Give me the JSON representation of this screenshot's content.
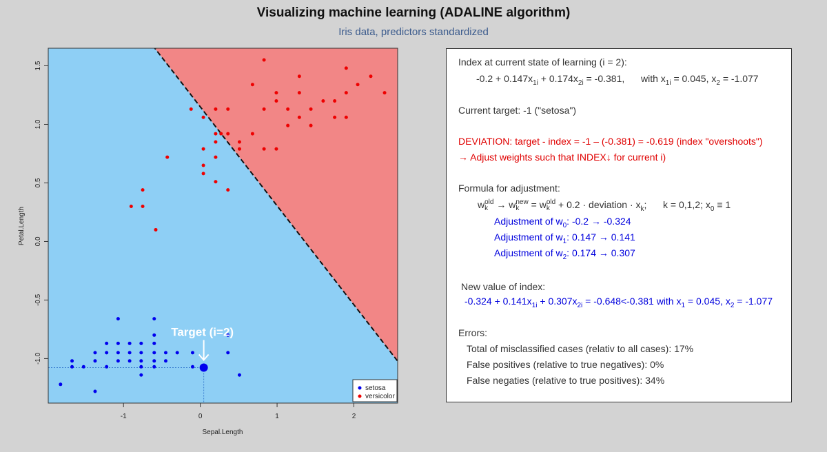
{
  "title": "Visualizing machine learning (ADALINE algorithm)",
  "subtitle": "Iris data, predictors standardized",
  "colors": {
    "setosa": "#0000ee",
    "versicolor": "#ee0000",
    "region_setosa": "#8ecff5",
    "region_versicolor": "#f28686",
    "subtitle": "#3a5a8c"
  },
  "chart_data": {
    "type": "scatter",
    "xlabel": "Sepal.Length",
    "ylabel": "Petal.Length",
    "xlim": [
      -1.98,
      2.57
    ],
    "ylim": [
      -1.38,
      1.65
    ],
    "xticks": [
      -1,
      0,
      1,
      2
    ],
    "yticks": [
      -1.0,
      -0.5,
      0.0,
      0.5,
      1.0,
      1.5
    ],
    "xtick_labels": [
      "-1",
      "0",
      "1",
      "2"
    ],
    "ytick_labels": [
      "-1.0",
      "-0.5",
      "0.0",
      "0.5",
      "1.0",
      "1.5"
    ],
    "legend_position": "bottom-right",
    "decision_boundary": {
      "w0": -0.2,
      "w1": 0.147,
      "w2": 0.174,
      "style": "dashed"
    },
    "series": [
      {
        "name": "setosa",
        "points": [
          [
            -1.82,
            -1.22
          ],
          [
            -1.67,
            -1.07
          ],
          [
            -1.67,
            -1.02
          ],
          [
            -1.52,
            -1.07
          ],
          [
            -1.37,
            -1.28
          ],
          [
            -1.37,
            -1.02
          ],
          [
            -1.37,
            -0.95
          ],
          [
            -1.22,
            -1.07
          ],
          [
            -1.22,
            -0.95
          ],
          [
            -1.22,
            -0.87
          ],
          [
            -1.07,
            -1.02
          ],
          [
            -1.07,
            -0.95
          ],
          [
            -1.07,
            -0.87
          ],
          [
            -1.07,
            -0.66
          ],
          [
            -0.92,
            -1.02
          ],
          [
            -0.92,
            -0.95
          ],
          [
            -0.92,
            -0.87
          ],
          [
            -0.77,
            -1.14
          ],
          [
            -0.77,
            -1.07
          ],
          [
            -0.77,
            -1.02
          ],
          [
            -0.77,
            -0.95
          ],
          [
            -0.77,
            -0.87
          ],
          [
            -0.6,
            -1.07
          ],
          [
            -0.6,
            -1.02
          ],
          [
            -0.6,
            -0.95
          ],
          [
            -0.6,
            -0.87
          ],
          [
            -0.6,
            -0.8
          ],
          [
            -0.6,
            -0.66
          ],
          [
            -0.45,
            -1.02
          ],
          [
            -0.45,
            -0.95
          ],
          [
            -0.3,
            -0.95
          ],
          [
            -0.1,
            -1.07
          ],
          [
            -0.1,
            -0.95
          ],
          [
            0.36,
            -0.95
          ],
          [
            0.36,
            -0.8
          ],
          [
            0.51,
            -1.14
          ]
        ]
      },
      {
        "name": "versicolor",
        "points": [
          [
            -0.9,
            0.3
          ],
          [
            -0.75,
            0.3
          ],
          [
            -0.75,
            0.44
          ],
          [
            -0.58,
            0.1
          ],
          [
            -0.43,
            0.72
          ],
          [
            -0.12,
            1.13
          ],
          [
            0.04,
            1.06
          ],
          [
            0.04,
            0.79
          ],
          [
            0.04,
            0.65
          ],
          [
            0.04,
            0.58
          ],
          [
            0.2,
            0.92
          ],
          [
            0.2,
            0.85
          ],
          [
            0.2,
            0.72
          ],
          [
            0.2,
            0.51
          ],
          [
            0.2,
            1.13
          ],
          [
            0.27,
            0.92
          ],
          [
            0.36,
            1.13
          ],
          [
            0.36,
            0.92
          ],
          [
            0.36,
            0.44
          ],
          [
            0.51,
            0.85
          ],
          [
            0.51,
            0.79
          ],
          [
            0.68,
            1.34
          ],
          [
            0.68,
            0.92
          ],
          [
            0.83,
            1.55
          ],
          [
            0.83,
            1.13
          ],
          [
            0.83,
            0.79
          ],
          [
            0.99,
            1.27
          ],
          [
            0.99,
            1.2
          ],
          [
            0.99,
            0.79
          ],
          [
            1.14,
            1.13
          ],
          [
            1.14,
            0.99
          ],
          [
            1.29,
            1.41
          ],
          [
            1.29,
            1.27
          ],
          [
            1.29,
            1.06
          ],
          [
            1.44,
            1.13
          ],
          [
            1.44,
            0.99
          ],
          [
            1.6,
            1.2
          ],
          [
            1.75,
            1.2
          ],
          [
            1.75,
            1.06
          ],
          [
            1.9,
            1.48
          ],
          [
            1.9,
            1.27
          ],
          [
            1.9,
            1.06
          ],
          [
            2.05,
            1.34
          ],
          [
            2.22,
            1.41
          ],
          [
            2.4,
            1.27
          ]
        ]
      }
    ],
    "highlight_point": {
      "x": 0.045,
      "y": -1.077,
      "label": "Target (i=2)"
    }
  },
  "panel": {
    "index_header": "Index at current state of learning (i = 2):",
    "index_eq_main": "-0.2 + 0.147x",
    "index_eq_p2": " + 0.174x",
    "index_eq_p3": " = -0.381,",
    "index_with_label": "with  x",
    "index_with_val1": " = 0.045,  x",
    "index_with_val2": " = -1.077",
    "target_line": "Current target: -1 (\"setosa\")",
    "deviation_line": "DEVIATION: target - index = -1 – (-0.381) = -0.619 (index \"overshoots\")",
    "adjust_line": "→ Adjust weights such that INDEX↓ for current i)",
    "formula_header": "Formula for adjustment:",
    "formula_w": "w",
    "formula_old": "old",
    "formula_k": "k",
    "formula_arrow": " → w",
    "formula_new": "new",
    "formula_eq": " = w",
    "formula_rest": " + 0.2 · deviation · x",
    "formula_semi": ";",
    "formula_krange": "k = 0,1,2;  x",
    "formula_sub0": "0",
    "formula_x0": " ≡ 1",
    "adj_label_w0": "Adjustment of w",
    "adj_sub0": "0",
    "adj_val_w0": ":  -0.2 → -0.324",
    "adj_label_w1": "Adjustment of w",
    "adj_sub1": "1",
    "adj_val_w1": ":  0.147 → 0.141",
    "adj_label_w2": "Adjustment of w",
    "adj_sub2": "2",
    "adj_val_w2": ":  0.174 → 0.307",
    "new_header": "New value of index:",
    "new_eq_a": "-0.324 + 0.141x",
    "new_eq_b": " + 0.307x",
    "new_eq_c": " = -0.648<-0.381  with x",
    "new_eq_d": " = 0.045,  x",
    "new_eq_e": " = -1.077",
    "sub_1i": "1i",
    "sub_2i": "2i",
    "sub_1": "1",
    "sub_2": "2",
    "errors_header": "Errors:",
    "err_total": "Total of misclassified cases (relativ to all cases): 17%",
    "err_fp": "False positives (relative to true negatives): 0%",
    "err_fn": "False negaties (relative to true positives): 34%"
  }
}
